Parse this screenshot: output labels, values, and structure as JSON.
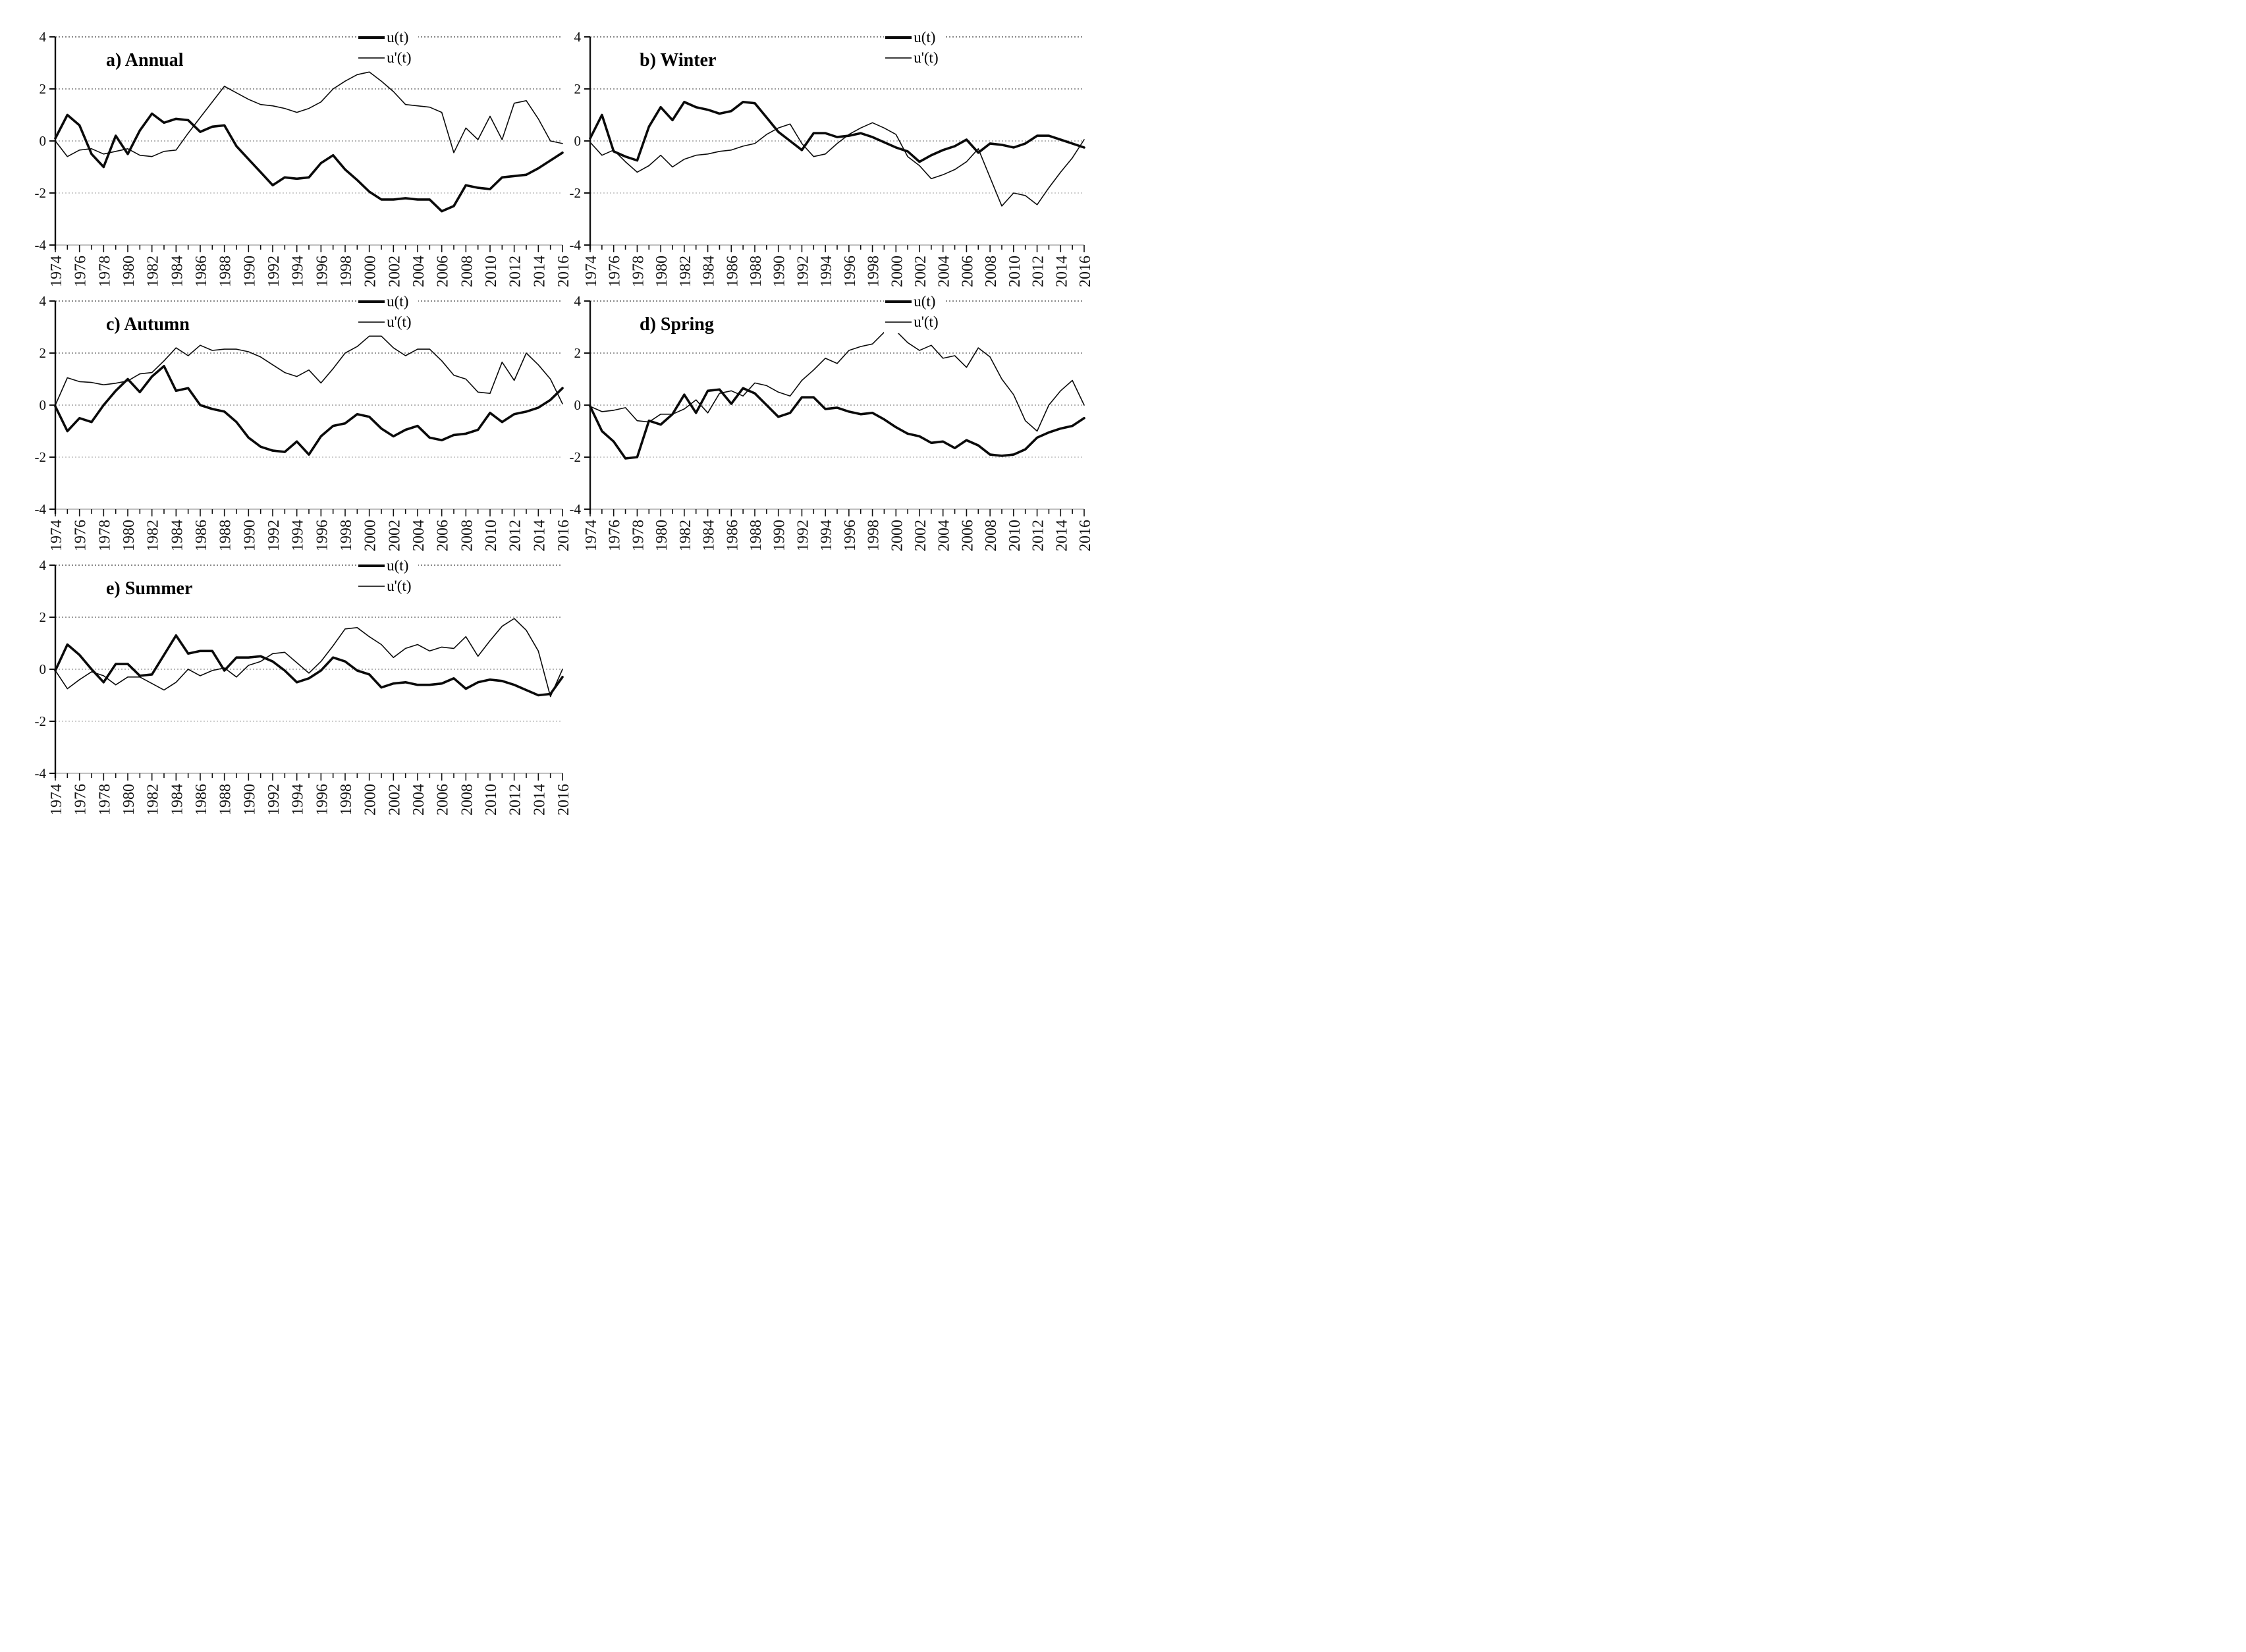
{
  "figure": {
    "background": "#ffffff",
    "series_color": "#000000",
    "legend": {
      "ut_label": "u(t)",
      "uprime_label": "u'(t)"
    },
    "axis": {
      "ylim": [
        -4,
        4
      ],
      "y_tick_labels": [
        "4",
        "2",
        "0",
        "-2",
        "-4"
      ],
      "y_tick_values": [
        4,
        2,
        0,
        -2,
        -4
      ],
      "x_start_year": 1974,
      "x_end_year": 2016,
      "x_tick_labels": [
        "1974",
        "1976",
        "1978",
        "1980",
        "1982",
        "1984",
        "1986",
        "1988",
        "1990",
        "1992",
        "1994",
        "1996",
        "1998",
        "2000",
        "2002",
        "2004",
        "2006",
        "2008",
        "2010",
        "2012",
        "2014",
        "2016"
      ]
    }
  },
  "chart_data": [
    {
      "type": "line",
      "panel": "a",
      "title": "a) Annual",
      "x_start": 1974,
      "x_end": 2016,
      "ylim": [
        -4,
        4
      ],
      "grid": "horizontal-dotted",
      "legend_position": "top-center-right",
      "series": [
        {
          "name": "u(t)",
          "style": "thick",
          "values": [
            0.1,
            1.0,
            0.6,
            -0.5,
            -1.0,
            0.2,
            -0.5,
            0.4,
            1.05,
            0.7,
            0.85,
            0.8,
            0.35,
            0.55,
            0.6,
            -0.2,
            -0.7,
            -1.2,
            -1.7,
            -1.4,
            -1.45,
            -1.4,
            -0.85,
            -0.55,
            -1.1,
            -1.5,
            -1.95,
            -2.25,
            -2.25,
            -2.2,
            -2.25,
            -2.25,
            -2.7,
            -2.5,
            -1.7,
            -1.8,
            -1.85,
            -1.4,
            -1.35,
            -1.3,
            -1.05,
            -0.75,
            -0.45
          ]
        },
        {
          "name": "u'(t)",
          "style": "thin",
          "values": [
            0.0,
            -0.6,
            -0.35,
            -0.3,
            -0.5,
            -0.4,
            -0.3,
            -0.55,
            -0.6,
            -0.4,
            -0.35,
            0.3,
            0.9,
            1.5,
            2.1,
            1.85,
            1.6,
            1.4,
            1.35,
            1.25,
            1.1,
            1.25,
            1.5,
            2.0,
            2.3,
            2.55,
            2.65,
            2.3,
            1.9,
            1.4,
            1.35,
            1.3,
            1.1,
            -0.45,
            0.5,
            0.05,
            0.95,
            0.05,
            1.45,
            1.55,
            0.85,
            0.0,
            -0.1
          ]
        }
      ]
    },
    {
      "type": "line",
      "panel": "b",
      "title": "b) Winter",
      "x_start": 1974,
      "x_end": 2016,
      "ylim": [
        -4,
        4
      ],
      "grid": "horizontal-dotted",
      "legend_position": "top-center-right",
      "series": [
        {
          "name": "u(t)",
          "style": "thick",
          "values": [
            0.1,
            1.0,
            -0.4,
            -0.6,
            -0.75,
            0.55,
            1.3,
            0.8,
            1.5,
            1.3,
            1.2,
            1.05,
            1.15,
            1.5,
            1.45,
            0.9,
            0.35,
            0.0,
            -0.35,
            0.3,
            0.3,
            0.15,
            0.2,
            0.3,
            0.15,
            -0.05,
            -0.25,
            -0.4,
            -0.8,
            -0.55,
            -0.35,
            -0.2,
            0.05,
            -0.45,
            -0.1,
            -0.15,
            -0.25,
            -0.1,
            0.2,
            0.2,
            0.05,
            -0.1,
            -0.25
          ]
        },
        {
          "name": "u'(t)",
          "style": "thin",
          "values": [
            -0.05,
            -0.55,
            -0.35,
            -0.8,
            -1.2,
            -0.95,
            -0.55,
            -1.0,
            -0.7,
            -0.55,
            -0.5,
            -0.4,
            -0.35,
            -0.2,
            -0.1,
            0.25,
            0.5,
            0.65,
            -0.1,
            -0.6,
            -0.5,
            -0.1,
            0.25,
            0.5,
            0.7,
            0.5,
            0.25,
            -0.6,
            -0.95,
            -1.45,
            -1.3,
            -1.1,
            -0.8,
            -0.3,
            -1.4,
            -2.5,
            -2.0,
            -2.1,
            -2.45,
            -1.8,
            -1.2,
            -0.65,
            0.05
          ]
        }
      ]
    },
    {
      "type": "line",
      "panel": "c",
      "title": "c) Autumn",
      "x_start": 1974,
      "x_end": 2016,
      "ylim": [
        -4,
        4
      ],
      "grid": "horizontal-dotted",
      "legend_position": "top-center-right",
      "series": [
        {
          "name": "u(t)",
          "style": "thick",
          "values": [
            -0.05,
            -1.0,
            -0.5,
            -0.65,
            0.0,
            0.55,
            1.0,
            0.5,
            1.1,
            1.5,
            0.55,
            0.65,
            0.0,
            -0.15,
            -0.25,
            -0.65,
            -1.25,
            -1.6,
            -1.75,
            -1.8,
            -1.4,
            -1.9,
            -1.2,
            -0.8,
            -0.7,
            -0.35,
            -0.45,
            -0.9,
            -1.2,
            -0.95,
            -0.8,
            -1.25,
            -1.35,
            -1.15,
            -1.1,
            -0.95,
            -0.3,
            -0.65,
            -0.35,
            -0.25,
            -0.1,
            0.2,
            0.65
          ]
        },
        {
          "name": "u'(t)",
          "style": "thin",
          "values": [
            0.0,
            1.05,
            0.9,
            0.87,
            0.78,
            0.84,
            0.93,
            1.2,
            1.25,
            1.7,
            2.2,
            1.9,
            2.3,
            2.1,
            2.15,
            2.15,
            2.05,
            1.85,
            1.55,
            1.25,
            1.1,
            1.35,
            0.85,
            1.4,
            2.0,
            2.25,
            2.65,
            2.65,
            2.2,
            1.9,
            2.15,
            2.15,
            1.7,
            1.15,
            1.0,
            0.5,
            0.45,
            1.65,
            0.95,
            2.0,
            1.55,
            1.0,
            0.05
          ]
        }
      ]
    },
    {
      "type": "line",
      "panel": "d",
      "title": "d) Spring",
      "x_start": 1974,
      "x_end": 2016,
      "ylim": [
        -4,
        4
      ],
      "grid": "horizontal-dotted",
      "legend_position": "top-center-right",
      "series": [
        {
          "name": "u(t)",
          "style": "thick",
          "values": [
            -0.05,
            -1.0,
            -1.4,
            -2.05,
            -2.0,
            -0.6,
            -0.75,
            -0.35,
            0.4,
            -0.3,
            0.55,
            0.6,
            0.05,
            0.65,
            0.45,
            0.0,
            -0.45,
            -0.3,
            0.3,
            0.3,
            -0.15,
            -0.1,
            -0.25,
            -0.35,
            -0.3,
            -0.55,
            -0.85,
            -1.1,
            -1.2,
            -1.45,
            -1.4,
            -1.65,
            -1.35,
            -1.55,
            -1.9,
            -1.95,
            -1.9,
            -1.7,
            -1.25,
            -1.05,
            -0.9,
            -0.8,
            -0.5
          ]
        },
        {
          "name": "u'(t)",
          "style": "thin",
          "values": [
            -0.05,
            -0.25,
            -0.2,
            -0.1,
            -0.6,
            -0.65,
            -0.35,
            -0.35,
            -0.15,
            0.2,
            -0.3,
            0.45,
            0.55,
            0.35,
            0.85,
            0.75,
            0.5,
            0.35,
            0.95,
            1.35,
            1.8,
            1.6,
            2.1,
            2.25,
            2.35,
            2.8,
            2.85,
            2.4,
            2.1,
            2.3,
            1.8,
            1.9,
            1.45,
            2.2,
            1.85,
            1.0,
            0.4,
            -0.6,
            -1.0,
            0.0,
            0.55,
            0.95,
            0.0
          ]
        }
      ]
    },
    {
      "type": "line",
      "panel": "e",
      "title": "e) Summer",
      "x_start": 1974,
      "x_end": 2016,
      "ylim": [
        -4,
        4
      ],
      "grid": "horizontal-dotted",
      "legend_position": "top-center-right",
      "series": [
        {
          "name": "u(t)",
          "style": "thick",
          "values": [
            -0.05,
            0.95,
            0.55,
            0.0,
            -0.5,
            0.2,
            0.2,
            -0.25,
            -0.2,
            0.55,
            1.3,
            0.6,
            0.7,
            0.7,
            -0.05,
            0.45,
            0.45,
            0.5,
            0.3,
            -0.05,
            -0.5,
            -0.35,
            -0.05,
            0.45,
            0.3,
            -0.05,
            -0.2,
            -0.7,
            -0.55,
            -0.5,
            -0.6,
            -0.6,
            -0.55,
            -0.35,
            -0.75,
            -0.5,
            -0.4,
            -0.45,
            -0.6,
            -0.8,
            -1.0,
            -0.95,
            -0.3
          ]
        },
        {
          "name": "u'(t)",
          "style": "thin",
          "values": [
            -0.05,
            -0.75,
            -0.4,
            -0.1,
            -0.25,
            -0.6,
            -0.3,
            -0.3,
            -0.55,
            -0.8,
            -0.5,
            0.0,
            -0.25,
            -0.05,
            0.05,
            -0.3,
            0.15,
            0.3,
            0.6,
            0.65,
            0.25,
            -0.15,
            0.3,
            0.9,
            1.55,
            1.6,
            1.25,
            0.95,
            0.45,
            0.8,
            0.95,
            0.7,
            0.85,
            0.8,
            1.25,
            0.5,
            1.1,
            1.65,
            1.95,
            1.5,
            0.7,
            -1.05,
            0.0
          ]
        }
      ]
    }
  ]
}
